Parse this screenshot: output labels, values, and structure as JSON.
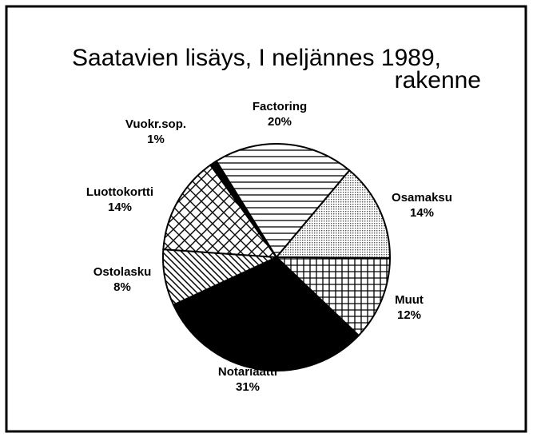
{
  "chart_data": {
    "type": "pie",
    "title": [
      "Saatavien lisäys, I neljännes 1989,",
      "rakenne"
    ],
    "categories": [
      "Factoring",
      "Osamaksu",
      "Muut",
      "Notariaatti",
      "Ostolasku",
      "Luottokortti",
      "Vuokr.sop."
    ],
    "values": [
      20,
      14,
      12,
      31,
      8,
      14,
      1
    ],
    "value_labels": [
      "20%",
      "14%",
      "12%",
      "31%",
      "8%",
      "14%",
      "1%"
    ],
    "patterns": [
      "hlines",
      "dots",
      "grid",
      "solid",
      "diag",
      "crosshatch",
      "solid"
    ],
    "start_angle": -32
  }
}
